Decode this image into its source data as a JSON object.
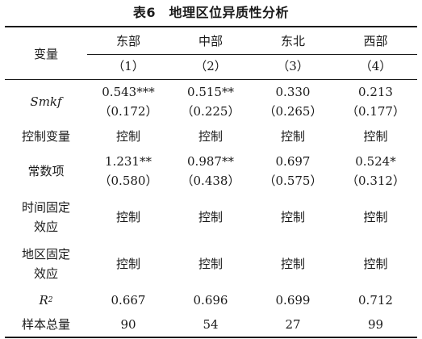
{
  "table": {
    "caption": "表6　地理区位异质性分析",
    "header": {
      "var_label": "变量",
      "columns": [
        "东部",
        "中部",
        "东北",
        "西部"
      ],
      "numbers": [
        "（1）",
        "（2）",
        "（3）",
        "（4）"
      ]
    },
    "rows": {
      "smkf": {
        "label": "Smkf",
        "coef": [
          "0.543***",
          "0.515**",
          "0.330",
          "0.213"
        ],
        "se": [
          "（0.172）",
          "（0.225）",
          "（0.265）",
          "（0.177）"
        ]
      },
      "controls": {
        "label": "控制变量",
        "values": [
          "控制",
          "控制",
          "控制",
          "控制"
        ]
      },
      "constant": {
        "label": "常数项",
        "coef": [
          "1.231**",
          "0.987**",
          "0.697",
          "0.524*"
        ],
        "se": [
          "（0.580）",
          "（0.438）",
          "（0.575）",
          "（0.312）"
        ]
      },
      "time_fe": {
        "label_line1": "时间固定",
        "label_line2": "效应",
        "values": [
          "控制",
          "控制",
          "控制",
          "控制"
        ]
      },
      "region_fe": {
        "label_line1": "地区固定",
        "label_line2": "效应",
        "values": [
          "控制",
          "控制",
          "控制",
          "控制"
        ]
      },
      "r2": {
        "label": "R",
        "label_sup": "2",
        "values": [
          "0.667",
          "0.696",
          "0.699",
          "0.712"
        ]
      },
      "n": {
        "label": "样本总量",
        "values": [
          "90",
          "54",
          "27",
          "99"
        ]
      }
    }
  }
}
